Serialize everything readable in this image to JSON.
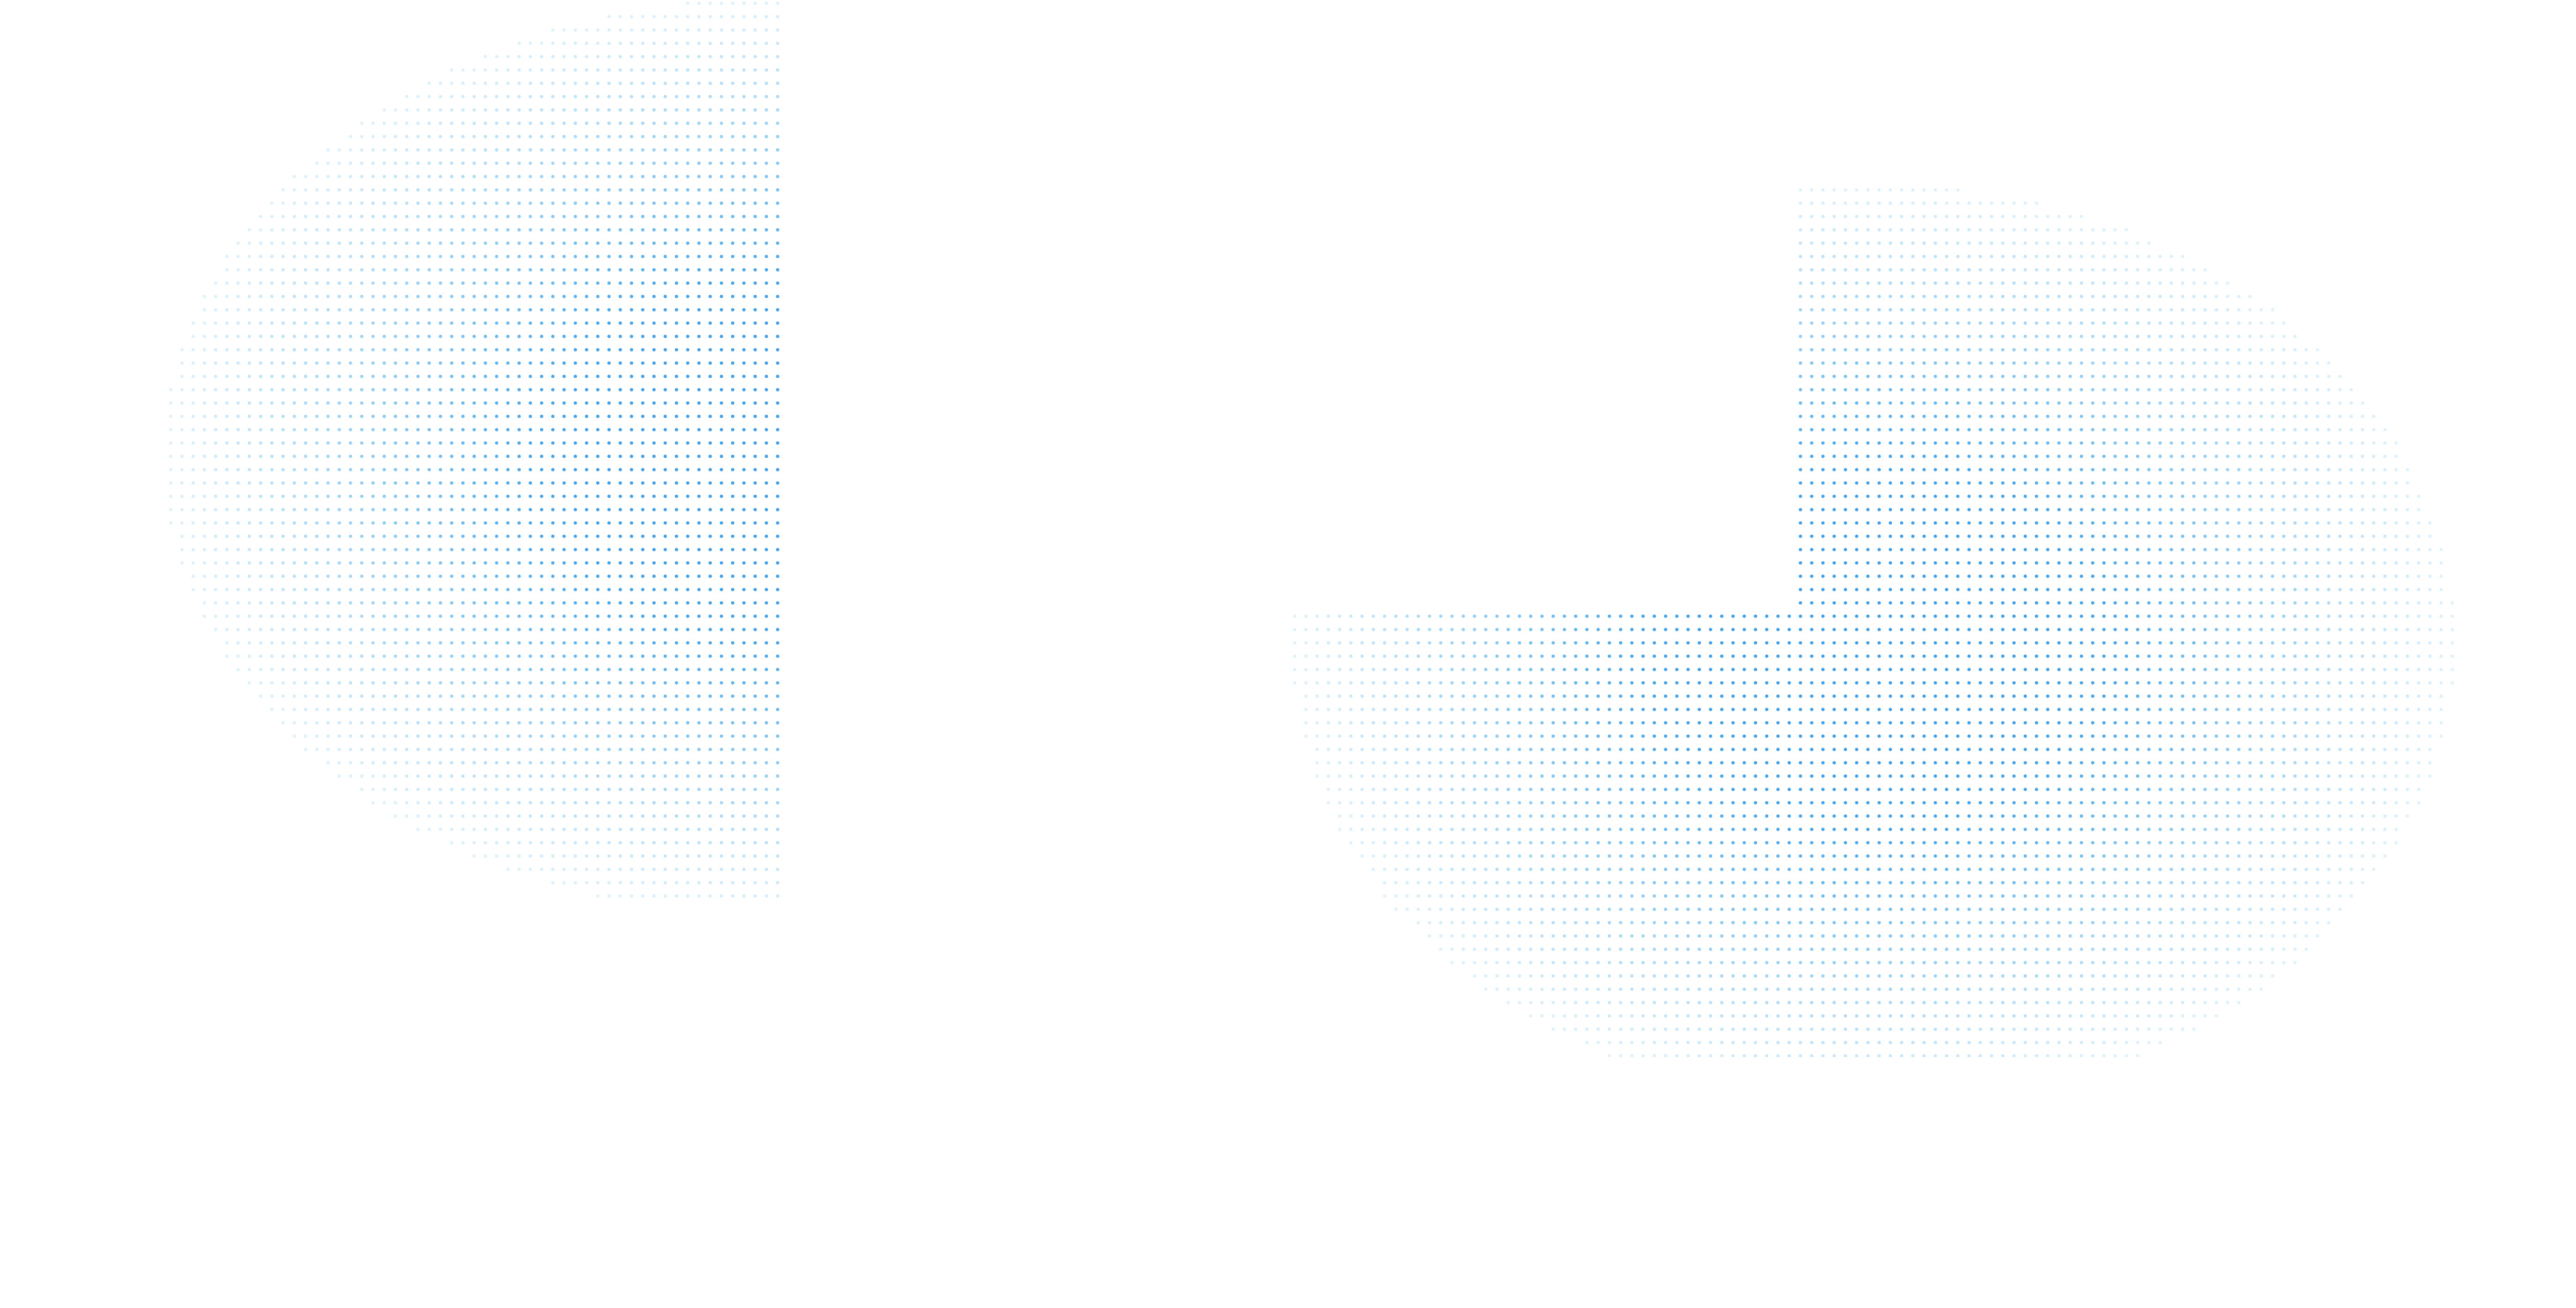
{
  "background": "#ffffff",
  "dot_color_core": "#4aa8f0",
  "dot_color_light": "#6cc6f7",
  "shapes": [
    {
      "name": "left-dot-field",
      "description_visible": false
    },
    {
      "name": "right-l-dot-field",
      "description_visible": false
    }
  ]
}
